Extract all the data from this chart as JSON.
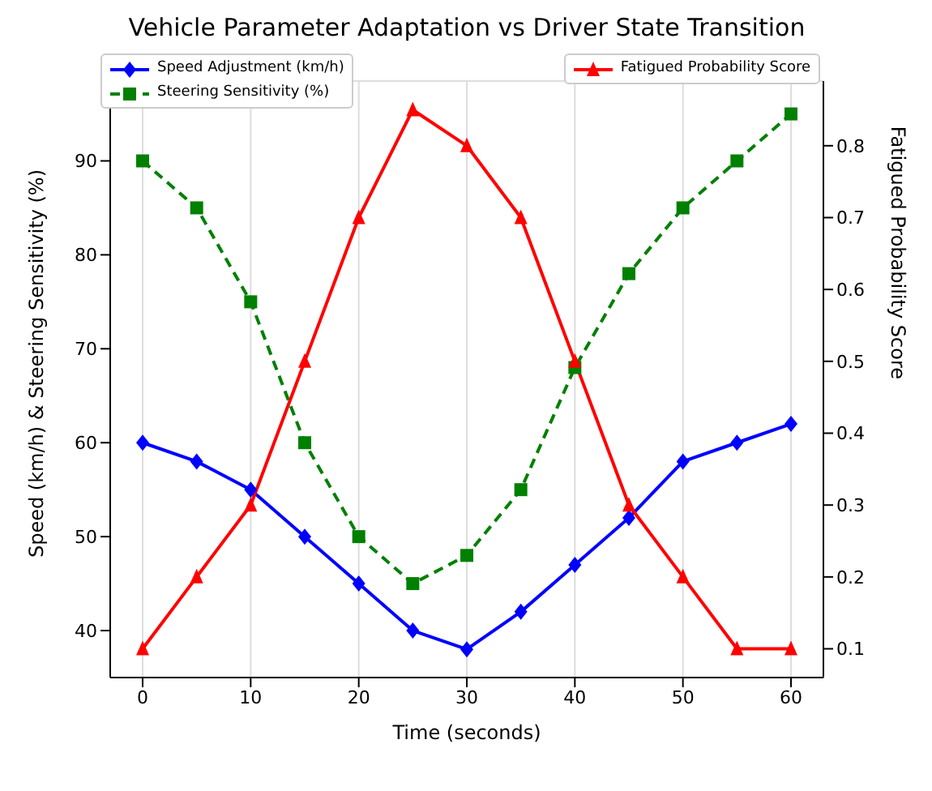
{
  "chart_data": {
    "type": "line",
    "title": "Vehicle Parameter Adaptation vs Driver State Transition",
    "xlabel": "Time (seconds)",
    "ylabel": "Speed (km/h) & Steering Sensitivity (%)",
    "y2label": "Fatigued Probability Score",
    "x": [
      0,
      5,
      10,
      15,
      20,
      25,
      30,
      35,
      40,
      45,
      50,
      55,
      60
    ],
    "series": [
      {
        "name": "Speed Adjustment (km/h)",
        "color": "#0000ff",
        "marker": "diamond",
        "line_style": "solid",
        "values": [
          60,
          58,
          55,
          50,
          45,
          40,
          38,
          42,
          47,
          52,
          58,
          60,
          62
        ]
      },
      {
        "name": "Steering Sensitivity (%)",
        "color": "#008000",
        "marker": "square",
        "line_style": "dashed",
        "values": [
          90,
          85,
          75,
          60,
          50,
          45,
          48,
          55,
          68,
          78,
          85,
          90,
          95
        ]
      },
      {
        "name": "Fatigued Probability Score",
        "color": "#ff0000",
        "marker": "triangle",
        "line_style": "solid",
        "axis": "y2",
        "values": [
          0.1,
          0.2,
          0.3,
          0.5,
          0.7,
          0.85,
          0.8,
          0.7,
          0.5,
          0.3,
          0.2,
          0.1,
          0.1
        ]
      }
    ],
    "xlim": [
      -3,
      63
    ],
    "xticks": [
      0,
      10,
      20,
      30,
      40,
      50,
      60
    ],
    "ylim": [
      35,
      98.5
    ],
    "yticks": [
      40,
      50,
      60,
      70,
      80,
      90
    ],
    "y2lim": [
      0.06,
      0.89
    ],
    "y2ticks": [
      0.1,
      0.2,
      0.3,
      0.4,
      0.5,
      0.6,
      0.7,
      0.8
    ],
    "grid": true,
    "legend": "top"
  }
}
